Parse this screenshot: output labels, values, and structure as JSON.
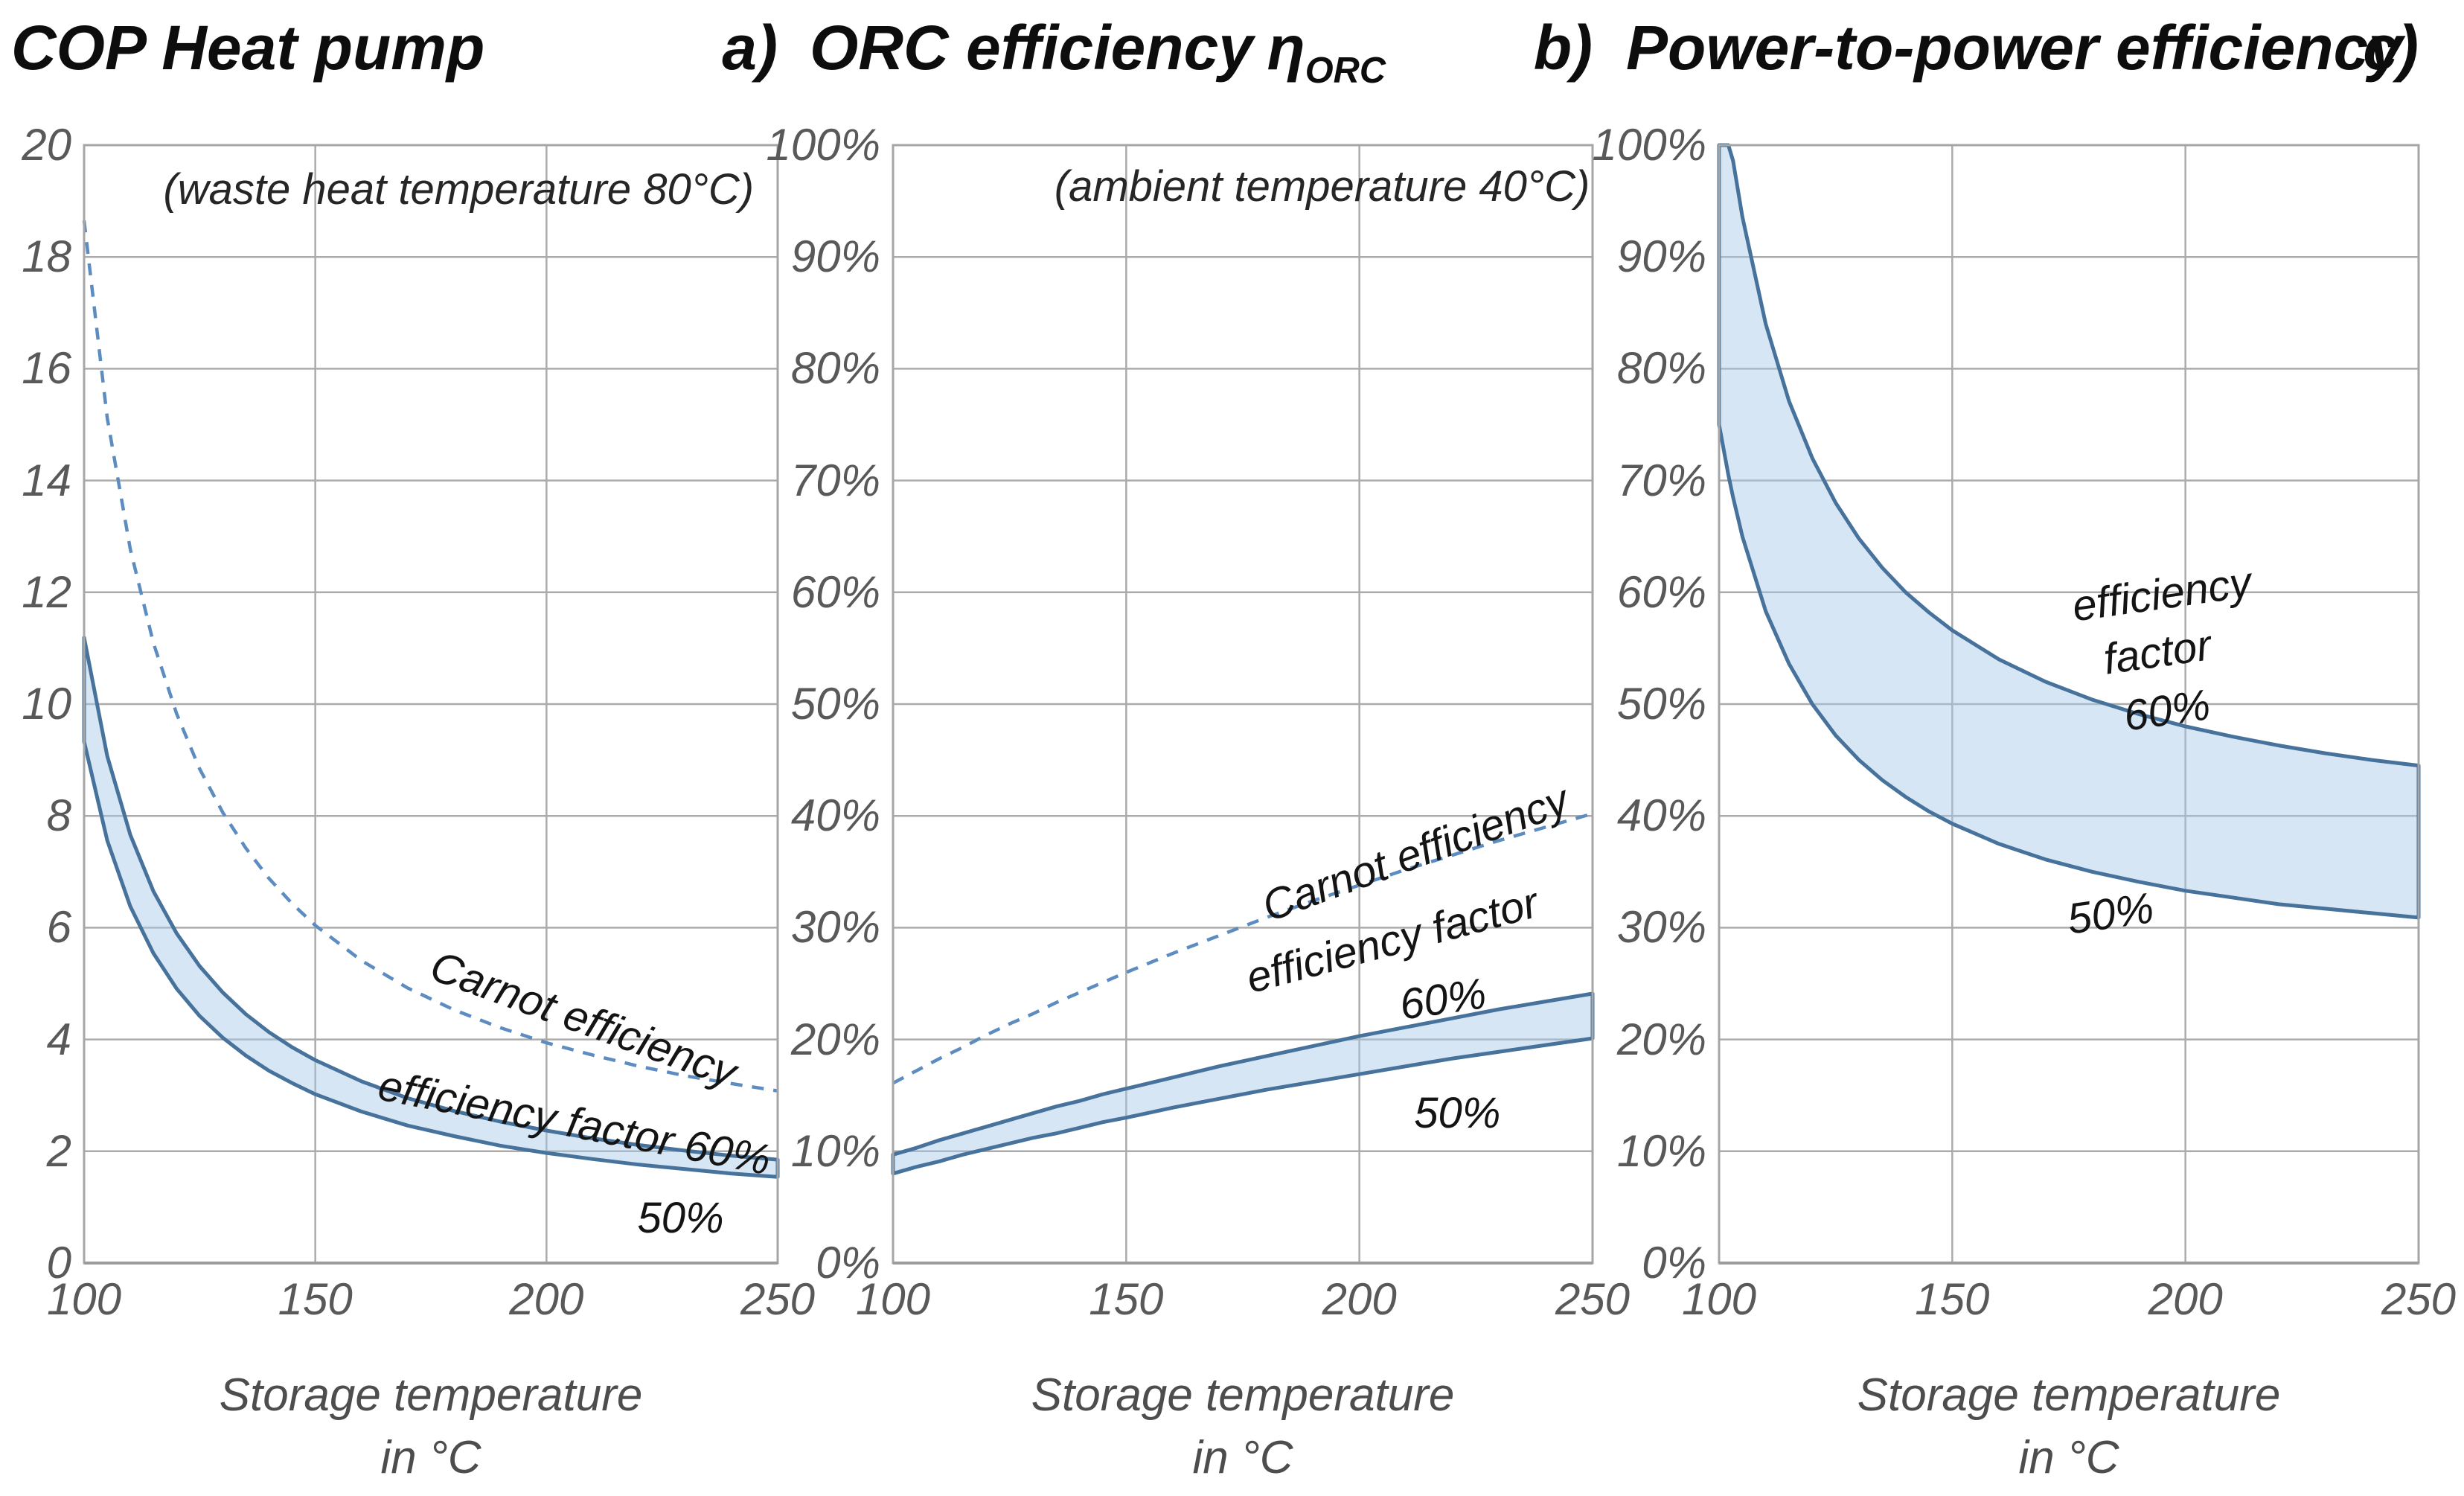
{
  "figure": {
    "background": "#ffffff",
    "xlabel_line1": "Storage temperature",
    "xlabel_line2": "in °C"
  },
  "colors": {
    "band_fill": "rgba(164,199,231,0.45)",
    "band_stroke": "#47729b",
    "dashed_stroke": "#5d8cc0",
    "gridline": "#ababab",
    "frame": "#a6a6a6",
    "axis_line": "#9c9c9c",
    "tick_text": "#595959",
    "title_text": "#0d0d0d"
  },
  "chart_data": [
    {
      "type": "area",
      "title": "COP Heat pump",
      "panel_label": "a)",
      "xlabel": "Storage temperature in °C",
      "xlim": [
        100,
        250
      ],
      "ylim": [
        0,
        20
      ],
      "grid": true,
      "legend": "inline labels, no legend box",
      "xticks": {
        "values": [
          100,
          150,
          200,
          250
        ],
        "labels": [
          "100",
          "150",
          "200",
          "250"
        ]
      },
      "yticks": {
        "values": [
          20,
          18,
          16,
          14,
          12,
          10,
          8,
          6,
          4,
          2,
          0
        ],
        "labels": [
          "20",
          "18",
          "16",
          "14",
          "12",
          "10",
          "8",
          "6",
          "4",
          "2",
          "0"
        ]
      },
      "x": [
        100,
        105,
        110,
        115,
        120,
        125,
        130,
        135,
        140,
        145,
        150,
        160,
        170,
        180,
        190,
        200,
        210,
        220,
        230,
        240,
        250
      ],
      "series": [
        {
          "name": "Carnot efficiency",
          "role": "line",
          "style": "dashed",
          "values": [
            18.65,
            15.12,
            12.77,
            11.09,
            9.83,
            8.84,
            8.06,
            7.42,
            6.88,
            6.43,
            6.04,
            5.41,
            4.92,
            4.53,
            4.21,
            3.94,
            3.72,
            3.52,
            3.35,
            3.21,
            3.08
          ]
        },
        {
          "name": "efficiency factor 60%",
          "role": "band-upper",
          "style": "solid",
          "values": [
            11.19,
            9.07,
            7.66,
            6.65,
            5.9,
            5.31,
            4.84,
            4.45,
            4.13,
            3.86,
            3.63,
            3.25,
            2.95,
            2.72,
            2.53,
            2.37,
            2.23,
            2.11,
            2.01,
            1.92,
            1.85
          ]
        },
        {
          "name": "efficiency factor 50%",
          "role": "band-lower",
          "style": "solid",
          "values": [
            9.33,
            7.56,
            6.38,
            5.54,
            4.91,
            4.42,
            4.03,
            3.71,
            3.44,
            3.22,
            3.02,
            2.71,
            2.46,
            2.27,
            2.1,
            1.97,
            1.86,
            1.76,
            1.68,
            1.6,
            1.54
          ]
        }
      ],
      "annotations": [
        {
          "text": "(waste heat temperature 80°C)",
          "x": 181,
          "y": 19.2,
          "rot": 0,
          "style": "note"
        },
        {
          "text": "Carnot efficiency",
          "x": 208,
          "y": 4.35,
          "rot": 20,
          "style": "label"
        },
        {
          "text": "efficiency factor 60%",
          "x": 206,
          "y": 2.5,
          "rot": 11,
          "style": "label"
        },
        {
          "text": "50%",
          "x": 229,
          "y": 0.8,
          "rot": 0,
          "style": "label"
        }
      ]
    },
    {
      "type": "area",
      "title": "ORC efficiency",
      "title_symbol": "η",
      "title_sub": "ORC",
      "panel_label": "b)",
      "xlabel": "Storage temperature in °C",
      "xlim": [
        100,
        250
      ],
      "ylim": [
        0,
        100
      ],
      "grid": true,
      "legend": "inline labels, no legend box",
      "xticks": {
        "values": [
          100,
          150,
          200,
          250
        ],
        "labels": [
          "100",
          "150",
          "200",
          "250"
        ]
      },
      "yticks": {
        "values": [
          100,
          90,
          80,
          70,
          60,
          50,
          40,
          30,
          20,
          10,
          0
        ],
        "labels": [
          "100%",
          "90%",
          "80%",
          "70%",
          "60%",
          "50%",
          "40%",
          "30%",
          "20%",
          "10%",
          "0%"
        ]
      },
      "x": [
        100,
        105,
        110,
        115,
        120,
        125,
        130,
        135,
        140,
        145,
        150,
        160,
        170,
        180,
        190,
        200,
        210,
        220,
        230,
        240,
        250
      ],
      "series": [
        {
          "name": "Carnot efficiency",
          "role": "line",
          "style": "dashed",
          "values": [
            16.1,
            17.2,
            18.3,
            19.3,
            20.4,
            21.4,
            22.3,
            23.3,
            24.2,
            25.1,
            26.0,
            27.7,
            29.3,
            30.9,
            32.4,
            33.8,
            35.2,
            36.5,
            37.8,
            39.0,
            40.2
          ]
        },
        {
          "name": "efficiency factor 60%",
          "role": "band-upper",
          "style": "solid",
          "values": [
            9.7,
            10.3,
            11.0,
            11.6,
            12.2,
            12.8,
            13.4,
            14.0,
            14.5,
            15.1,
            15.6,
            16.6,
            17.6,
            18.5,
            19.4,
            20.3,
            21.1,
            21.9,
            22.7,
            23.4,
            24.1
          ]
        },
        {
          "name": "efficiency factor 50%",
          "role": "band-lower",
          "style": "solid",
          "values": [
            8.0,
            8.6,
            9.1,
            9.7,
            10.2,
            10.7,
            11.2,
            11.6,
            12.1,
            12.6,
            13.0,
            13.9,
            14.7,
            15.5,
            16.2,
            16.9,
            17.6,
            18.3,
            18.9,
            19.5,
            20.1
          ]
        }
      ],
      "annotations": [
        {
          "text": "(ambient temperature 40°C)",
          "x": 192,
          "y": 96.3,
          "rot": 0,
          "style": "note"
        },
        {
          "text": "Carnot efficiency",
          "x": 212,
          "y": 36.6,
          "rot": -20,
          "style": "label"
        },
        {
          "text": "efficiency factor",
          "x": 207,
          "y": 28.8,
          "rot": -15,
          "style": "label"
        },
        {
          "text": "60%",
          "x": 218,
          "y": 23.6,
          "rot": -8,
          "style": "label"
        },
        {
          "text": "50%",
          "x": 221,
          "y": 13.4,
          "rot": 0,
          "style": "label"
        }
      ]
    },
    {
      "type": "area",
      "title": "Power-to-power efficiency",
      "panel_label": "c)",
      "xlabel": "Storage temperature in °C",
      "xlim": [
        100,
        250
      ],
      "ylim": [
        0,
        100
      ],
      "grid": true,
      "legend": "inline labels, no legend box",
      "xticks": {
        "values": [
          100,
          150,
          200,
          250
        ],
        "labels": [
          "100",
          "150",
          "200",
          "250"
        ]
      },
      "yticks": {
        "values": [
          100,
          90,
          80,
          70,
          60,
          50,
          40,
          30,
          20,
          10,
          0
        ],
        "labels": [
          "100%",
          "90%",
          "80%",
          "70%",
          "60%",
          "50%",
          "40%",
          "30%",
          "20%",
          "10%",
          "0%"
        ]
      },
      "x": [
        100,
        102,
        103,
        105,
        110,
        115,
        120,
        125,
        130,
        135,
        140,
        145,
        150,
        160,
        170,
        180,
        190,
        200,
        210,
        220,
        230,
        240,
        250
      ],
      "series": [
        {
          "name": "efficiency factor 60%",
          "role": "band-upper",
          "style": "solid",
          "values": [
            100,
            100,
            98.6,
            93.6,
            84.0,
            77.1,
            72.0,
            68.0,
            64.8,
            62.2,
            60.0,
            58.2,
            56.6,
            54.0,
            52.0,
            50.4,
            49.1,
            48.0,
            47.1,
            46.3,
            45.6,
            45.0,
            44.5
          ]
        },
        {
          "name": "efficiency factor 50%",
          "role": "band-lower",
          "style": "solid",
          "values": [
            75.0,
            70.5,
            68.5,
            65.0,
            58.3,
            53.6,
            50.0,
            47.2,
            45.0,
            43.2,
            41.7,
            40.4,
            39.3,
            37.5,
            36.1,
            35.0,
            34.1,
            33.3,
            32.7,
            32.1,
            31.7,
            31.3,
            30.9
          ]
        }
      ],
      "annotations": [
        {
          "text": "efficiency",
          "x": 195,
          "y": 59.8,
          "rot": -8,
          "style": "label"
        },
        {
          "text": "factor",
          "x": 194,
          "y": 54.6,
          "rot": -8,
          "style": "label"
        },
        {
          "text": "60%",
          "x": 196,
          "y": 49.4,
          "rot": -8,
          "style": "label"
        },
        {
          "text": "50%",
          "x": 184,
          "y": 31.2,
          "rot": -8,
          "style": "label"
        }
      ]
    }
  ]
}
